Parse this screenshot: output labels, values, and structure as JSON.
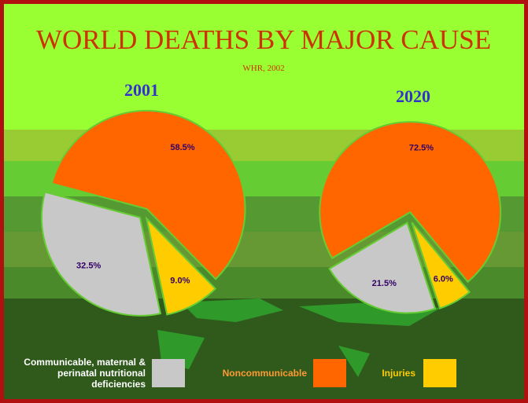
{
  "header": {
    "title": "WORLD DEATHS BY MAJOR CAUSE",
    "subtitle": "WHR, 2002"
  },
  "chart_data": [
    {
      "type": "pie",
      "title": "2001",
      "categories": [
        "Communicable, maternal & perinatal nutritional deficiencies",
        "Noncommunicable",
        "Injuries"
      ],
      "values": [
        32.5,
        58.5,
        9.0
      ],
      "value_labels": [
        "32.5%",
        "58.5%",
        "9.0%"
      ],
      "colors": [
        "#c8c8c8",
        "#ff6600",
        "#ffcc00"
      ]
    },
    {
      "type": "pie",
      "title": "2020",
      "categories": [
        "Communicable, maternal & perinatal nutritional deficiencies",
        "Noncommunicable",
        "Injuries"
      ],
      "values": [
        21.5,
        72.5,
        6.0
      ],
      "value_labels": [
        "21.5%",
        "72.5%",
        "6.0%"
      ],
      "colors": [
        "#c8c8c8",
        "#ff6600",
        "#ffcc00"
      ]
    }
  ]
}
